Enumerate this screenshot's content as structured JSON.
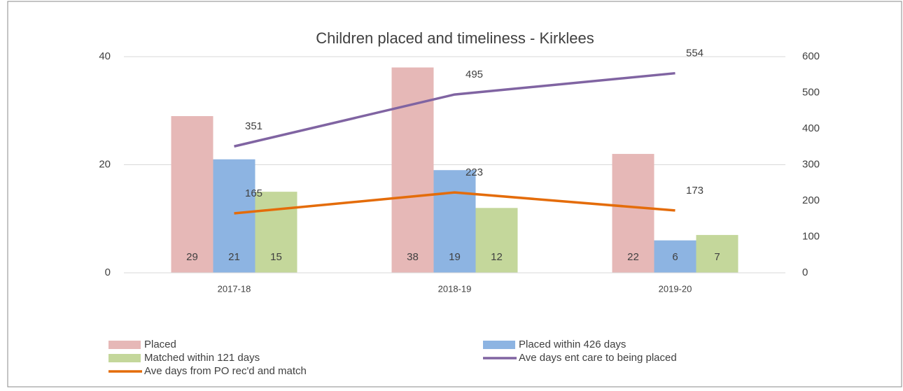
{
  "chart_data": {
    "type": "bar",
    "title": "Children placed and timeliness - Kirklees",
    "categories": [
      "2017-18",
      "2018-19",
      "2019-20"
    ],
    "series": [
      {
        "name": "Placed",
        "color": "#e6b8b7",
        "values": [
          29,
          38,
          22
        ]
      },
      {
        "name": "Placed within 426 days",
        "color": "#8db4e2",
        "values": [
          21,
          19,
          6
        ]
      },
      {
        "name": "Matched within 121 days",
        "color": "#c4d79b",
        "values": [
          15,
          12,
          7
        ]
      },
      {
        "name": "Ave days ent care to being placed",
        "color": "#8064a2",
        "type": "line",
        "axis": "y2",
        "values": [
          351,
          495,
          554
        ]
      },
      {
        "name": "Ave days from PO rec'd and match",
        "color": "#e46c0a",
        "type": "line",
        "axis": "y2",
        "values": [
          165,
          223,
          173
        ]
      }
    ],
    "ylim": [
      0,
      40
    ],
    "yticks": [
      0,
      20,
      40
    ],
    "y2lim": [
      0,
      600
    ],
    "y2ticks": [
      0,
      100,
      200,
      300,
      400,
      500,
      600
    ],
    "grid": true,
    "legend": "bottom"
  }
}
